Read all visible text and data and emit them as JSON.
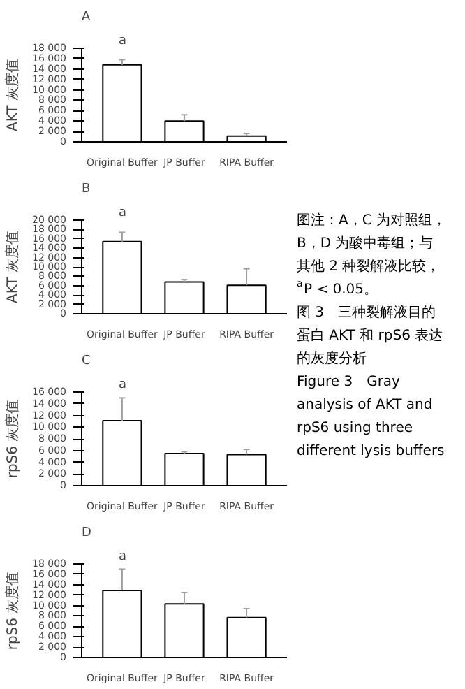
{
  "chart_data": [
    {
      "type": "bar",
      "title": "A",
      "ylabel": "AKT 灰度值",
      "categories": [
        "Original Buffer",
        "JP Buffer",
        "RIPA Buffer"
      ],
      "values": [
        14800,
        4000,
        1100
      ],
      "errors": [
        [
          14800,
          15800
        ],
        [
          4000,
          5200
        ],
        [
          1100,
          1600
        ]
      ],
      "color": "#ffffff",
      "ylim": [
        0,
        18000
      ],
      "yticks": [
        0,
        {
          "value": 2000,
          "label": "2 000"
        },
        {
          "value": 4000,
          "label": "4 000"
        },
        {
          "value": 6000,
          "label": "6 000"
        },
        {
          "value": 8000,
          "label": "8 000"
        },
        {
          "value": 10000,
          "label": "10 000"
        },
        {
          "value": 12000,
          "label": "12 000"
        },
        {
          "value": 14000,
          "label": "14 000"
        },
        {
          "value": 16000,
          "label": "16 000"
        },
        {
          "value": 18000,
          "label": "18 000"
        }
      ],
      "annotations": [
        "a"
      ]
    },
    {
      "type": "bar",
      "title": "B",
      "ylabel": "AKT 灰度值",
      "categories": [
        "Original Buffer",
        "JP Buffer",
        "RIPA Buffer"
      ],
      "values": [
        15400,
        6800,
        6100
      ],
      "errors": [
        [
          15400,
          17400
        ],
        [
          6800,
          7300
        ],
        [
          6100,
          9600
        ]
      ],
      "color": "#ffffff",
      "ylim": [
        0,
        20000
      ],
      "yticks": [
        0,
        {
          "value": 2000,
          "label": "2 000"
        },
        {
          "value": 4000,
          "label": "4 000"
        },
        {
          "value": 6000,
          "label": "6 000"
        },
        {
          "value": 8000,
          "label": "8 000"
        },
        {
          "value": 10000,
          "label": "10 000"
        },
        {
          "value": 12000,
          "label": "12 000"
        },
        {
          "value": 14000,
          "label": "14 000"
        },
        {
          "value": 16000,
          "label": "16 000"
        },
        {
          "value": 18000,
          "label": "18 000"
        },
        {
          "value": 20000,
          "label": "20 000"
        }
      ],
      "annotations": [
        "a"
      ]
    },
    {
      "type": "bar",
      "title": "C",
      "ylabel": "rpS6 灰度值",
      "categories": [
        "Original Buffer",
        "JP Buffer",
        "RIPA Buffer"
      ],
      "values": [
        11100,
        5500,
        5300
      ],
      "errors": [
        [
          11100,
          15000
        ],
        [
          5500,
          5800
        ],
        [
          5300,
          6200
        ]
      ],
      "color": "#ffffff",
      "ylim": [
        0,
        16000
      ],
      "yticks": [
        0,
        {
          "value": 2000,
          "label": "2 000"
        },
        {
          "value": 4000,
          "label": "4 000"
        },
        {
          "value": 6000,
          "label": "6 000"
        },
        {
          "value": 8000,
          "label": "8 000"
        },
        {
          "value": 10000,
          "label": "10 000"
        },
        {
          "value": 12000,
          "label": "12 000"
        },
        {
          "value": 14000,
          "label": "14 000"
        },
        {
          "value": 16000,
          "label": "16 000"
        }
      ],
      "annotations": [
        "a"
      ]
    },
    {
      "type": "bar",
      "title": "D",
      "ylabel": "rpS6 灰度值",
      "categories": [
        "Original Buffer",
        "JP Buffer",
        "RIPA Buffer"
      ],
      "values": [
        12900,
        10300,
        7700
      ],
      "errors": [
        [
          12900,
          17000
        ],
        [
          10300,
          12500
        ],
        [
          7700,
          9400
        ]
      ],
      "color": "#ffffff",
      "ylim": [
        0,
        18000
      ],
      "yticks": [
        0,
        {
          "value": 2000,
          "label": "2 000"
        },
        {
          "value": 4000,
          "label": "4 000"
        },
        {
          "value": 6000,
          "label": "6 000"
        },
        {
          "value": 8000,
          "label": "8 000"
        },
        {
          "value": 10000,
          "label": "10 000"
        },
        {
          "value": 12000,
          "label": "12 000"
        },
        {
          "value": 14000,
          "label": "14 000"
        },
        {
          "value": 16000,
          "label": "16 000"
        },
        {
          "value": 18000,
          "label": "18 000"
        }
      ],
      "annotations": [
        "a"
      ]
    },
    {
      "type": "other",
      "annotations": [
        "图注：A，C 为对照组，",
        "B，D 为酸中毒组；与",
        "其他 2 种裂解液比较，",
        "$^{a}$P < 0.05。",
        "图 3　三种裂解液目的",
        "蛋白 AKT 和 rpS6 表达",
        "的灰度分析",
        "Figure 3　Gray",
        "analysis of AKT and",
        "rpS6 using three",
        "different lysis buffers"
      ]
    }
  ]
}
